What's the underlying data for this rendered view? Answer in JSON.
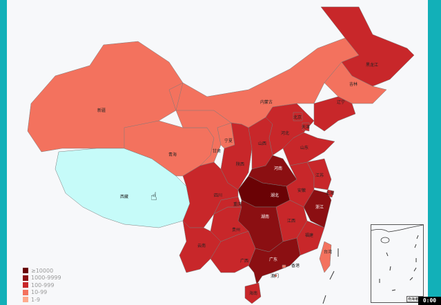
{
  "colors": {
    "ge10000": "#6a0205",
    "k1": "#8b0f12",
    "h100": "#c8272a",
    "t10": "#f3725e",
    "o1": "#ffab8d",
    "selected": "#c6fbf9",
    "frame": "#12b0b8"
  },
  "legend": [
    {
      "label": "≥10000",
      "color": "#6a0205"
    },
    {
      "label": "1000-9999",
      "color": "#8b0f12"
    },
    {
      "label": "100-999",
      "color": "#c8272a"
    },
    {
      "label": "10-99",
      "color": "#f3725e"
    },
    {
      "label": "1-9",
      "color": "#ffab8d"
    }
  ],
  "provinces": [
    {
      "name": "新疆",
      "level": "t10"
    },
    {
      "name": "西藏",
      "level": "selected"
    },
    {
      "name": "青海",
      "level": "t10"
    },
    {
      "name": "甘肃",
      "level": "t10"
    },
    {
      "name": "内蒙古",
      "level": "t10"
    },
    {
      "name": "黑龙江",
      "level": "h100"
    },
    {
      "name": "吉林",
      "level": "t10"
    },
    {
      "name": "辽宁",
      "level": "h100"
    },
    {
      "name": "宁夏",
      "level": "t10"
    },
    {
      "name": "陕西",
      "level": "h100"
    },
    {
      "name": "山西",
      "level": "h100"
    },
    {
      "name": "河北",
      "level": "h100"
    },
    {
      "name": "北京",
      "level": "h100"
    },
    {
      "name": "天津",
      "level": "h100"
    },
    {
      "name": "山东",
      "level": "h100"
    },
    {
      "name": "河南",
      "level": "k1"
    },
    {
      "name": "湖北",
      "level": "ge10000"
    },
    {
      "name": "安徽",
      "level": "h100"
    },
    {
      "name": "江苏",
      "level": "h100"
    },
    {
      "name": "上海",
      "level": "h100"
    },
    {
      "name": "浙江",
      "level": "k1"
    },
    {
      "name": "江西",
      "level": "h100"
    },
    {
      "name": "福建",
      "level": "h100"
    },
    {
      "name": "湖南",
      "level": "k1"
    },
    {
      "name": "广东",
      "level": "k1"
    },
    {
      "name": "海南",
      "level": "h100"
    },
    {
      "name": "广西",
      "level": "h100"
    },
    {
      "name": "贵州",
      "level": "h100"
    },
    {
      "name": "重庆",
      "level": "h100"
    },
    {
      "name": "四川",
      "level": "h100"
    },
    {
      "name": "云南",
      "level": "h100"
    },
    {
      "name": "台湾",
      "level": "t10"
    },
    {
      "name": "香港",
      "level": "t10"
    },
    {
      "name": "澳门",
      "level": "t10"
    }
  ],
  "inset_label": "南海诸岛",
  "timer": "0:00"
}
